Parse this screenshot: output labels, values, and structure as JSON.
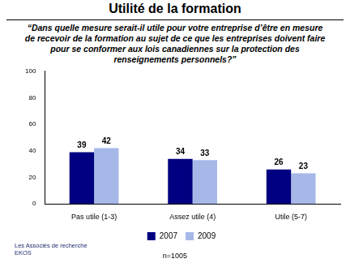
{
  "chart_data": {
    "type": "bar",
    "title": "Utilité de la formation",
    "subtitle": "“Dans quelle mesure serait-il utile pour votre entreprise d’être en mesure de recevoir de la formation au sujet de ce que les entreprises doivent faire pour se conformer aux lois canadiennes sur la protection des renseignements personnels?”",
    "categories": [
      "Pas utile (1-3)",
      "Assez utile (4)",
      "Utile (5-7)"
    ],
    "series": [
      {
        "name": "2007",
        "color": "#000080",
        "values": [
          39,
          34,
          26
        ]
      },
      {
        "name": "2009",
        "color": "#a6b8e8",
        "values": [
          42,
          33,
          23
        ]
      }
    ],
    "ylim": [
      0,
      100
    ],
    "yticks": [
      0,
      20,
      40,
      60,
      80,
      100
    ],
    "grid": false,
    "legend": "bottom",
    "data_labels": true,
    "annotations": [
      "n=1005",
      "Les Associés de recherche EKOS"
    ]
  }
}
